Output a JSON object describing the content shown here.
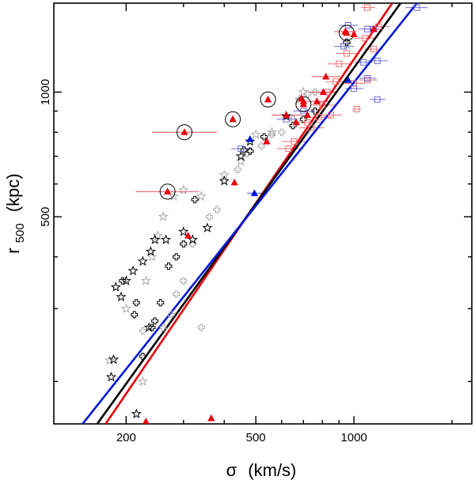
{
  "chart_data": {
    "type": "scatter",
    "title": "",
    "xscale": "log",
    "yscale": "log",
    "xlim": [
      120,
      2300
    ],
    "ylim": [
      158,
      1640
    ],
    "xlabel": {
      "main": "σ",
      "units": "(km/s)"
    },
    "ylabel": {
      "main": "r",
      "sub": "500",
      "units": "(kpc)"
    },
    "xticks": [
      {
        "value": 200,
        "label": "200"
      },
      {
        "value": 500,
        "label": "500"
      },
      {
        "value": 1000,
        "label": "1000"
      }
    ],
    "yticks": [
      {
        "value": 500,
        "label": "500"
      },
      {
        "value": 1000,
        "label": "1000"
      }
    ],
    "colors": {
      "red": "#e8000b",
      "black": "#000000",
      "blue": "#0018d8",
      "grey": "#aaaaaa",
      "light_red": "#f07070",
      "light_blue": "#6c6cd8"
    },
    "fit_lines": [
      {
        "name": "red fit",
        "color": "#e8000b",
        "x": [
          173,
          1310
        ],
        "y": [
          158,
          1640
        ]
      },
      {
        "name": "black fit",
        "color": "#000000",
        "x": [
          163,
          1390
        ],
        "y": [
          158,
          1640
        ]
      },
      {
        "name": "blue fit",
        "color": "#0018d8",
        "x": [
          147,
          1560
        ],
        "y": [
          158,
          1640
        ]
      }
    ],
    "series": [
      {
        "name": "red triangles",
        "marker": "triangle",
        "color": "#e8000b",
        "points": [
          {
            "x": 268,
            "y": 575,
            "xerr": [
              214,
              335
            ],
            "circled": true
          },
          {
            "x": 302,
            "y": 800,
            "xerr": [
              240,
              380
            ],
            "circled": true
          },
          {
            "x": 425,
            "y": 860,
            "circled": true
          },
          {
            "x": 545,
            "y": 960,
            "circled": true
          },
          {
            "x": 700,
            "y": 935,
            "circled": true
          },
          {
            "x": 950,
            "y": 1390,
            "circled": true
          },
          {
            "x": 310,
            "y": 450
          },
          {
            "x": 230,
            "y": 160
          },
          {
            "x": 365,
            "y": 163
          },
          {
            "x": 430,
            "y": 605
          },
          {
            "x": 540,
            "y": 760
          },
          {
            "x": 620,
            "y": 880,
            "xerr": [
              560,
              690
            ]
          },
          {
            "x": 665,
            "y": 845
          },
          {
            "x": 690,
            "y": 965
          },
          {
            "x": 700,
            "y": 950
          },
          {
            "x": 720,
            "y": 880
          },
          {
            "x": 770,
            "y": 950,
            "xerr": [
              700,
              850
            ]
          },
          {
            "x": 805,
            "y": 1000,
            "xerr": [
              730,
              890
            ]
          },
          {
            "x": 820,
            "y": 1090,
            "xerr": [
              740,
              910
            ]
          },
          {
            "x": 940,
            "y": 1400,
            "xerr": [
              870,
              1020
            ]
          },
          {
            "x": 1000,
            "y": 1380
          },
          {
            "x": 1150,
            "y": 1420
          }
        ]
      },
      {
        "name": "blue triangles",
        "marker": "triangle",
        "color": "#0018d8",
        "points": [
          {
            "x": 480,
            "y": 770
          },
          {
            "x": 495,
            "y": 570,
            "xerr": [
              470,
              525
            ]
          },
          {
            "x": 960,
            "y": 1070
          }
        ]
      },
      {
        "name": "black stars",
        "marker": "star",
        "color": "#000000",
        "points": [
          {
            "x": 180,
            "y": 205
          },
          {
            "x": 183,
            "y": 226
          },
          {
            "x": 186,
            "y": 338
          },
          {
            "x": 193,
            "y": 320
          },
          {
            "x": 200,
            "y": 350
          },
          {
            "x": 210,
            "y": 370
          },
          {
            "x": 215,
            "y": 167
          },
          {
            "x": 225,
            "y": 390
          },
          {
            "x": 235,
            "y": 270
          },
          {
            "x": 238,
            "y": 412
          },
          {
            "x": 245,
            "y": 440
          },
          {
            "x": 265,
            "y": 440
          },
          {
            "x": 300,
            "y": 460
          },
          {
            "x": 320,
            "y": 440
          },
          {
            "x": 355,
            "y": 470
          },
          {
            "x": 400,
            "y": 610
          },
          {
            "x": 450,
            "y": 700
          },
          {
            "x": 480,
            "y": 760
          },
          {
            "x": 620,
            "y": 875
          }
        ]
      },
      {
        "name": "black crosses",
        "marker": "cross",
        "color": "#000000",
        "points": [
          {
            "x": 195,
            "y": 350
          },
          {
            "x": 212,
            "y": 290
          },
          {
            "x": 215,
            "y": 310
          },
          {
            "x": 225,
            "y": 230
          },
          {
            "x": 240,
            "y": 270
          },
          {
            "x": 245,
            "y": 280
          },
          {
            "x": 255,
            "y": 310
          },
          {
            "x": 270,
            "y": 380
          },
          {
            "x": 285,
            "y": 400
          },
          {
            "x": 300,
            "y": 430
          },
          {
            "x": 325,
            "y": 550
          },
          {
            "x": 460,
            "y": 725
          },
          {
            "x": 480,
            "y": 720
          },
          {
            "x": 530,
            "y": 780
          },
          {
            "x": 650,
            "y": 830
          },
          {
            "x": 700,
            "y": 860
          },
          {
            "x": 760,
            "y": 900
          },
          {
            "x": 950,
            "y": 1320
          }
        ]
      },
      {
        "name": "grey stars",
        "marker": "star",
        "color": "#aaaaaa",
        "points": [
          {
            "x": 178,
            "y": 225
          },
          {
            "x": 200,
            "y": 300
          },
          {
            "x": 225,
            "y": 200
          },
          {
            "x": 230,
            "y": 350
          },
          {
            "x": 240,
            "y": 400
          },
          {
            "x": 250,
            "y": 450
          },
          {
            "x": 260,
            "y": 500
          },
          {
            "x": 280,
            "y": 560
          },
          {
            "x": 300,
            "y": 580
          },
          {
            "x": 340,
            "y": 560
          },
          {
            "x": 400,
            "y": 630
          },
          {
            "x": 450,
            "y": 680
          },
          {
            "x": 500,
            "y": 790
          },
          {
            "x": 560,
            "y": 800
          },
          {
            "x": 680,
            "y": 960
          },
          {
            "x": 700,
            "y": 1000
          },
          {
            "x": 950,
            "y": 1300
          }
        ]
      },
      {
        "name": "grey crosses",
        "marker": "cross",
        "color": "#aaaaaa",
        "points": [
          {
            "x": 225,
            "y": 265
          },
          {
            "x": 260,
            "y": 270
          },
          {
            "x": 275,
            "y": 290
          },
          {
            "x": 285,
            "y": 325
          },
          {
            "x": 300,
            "y": 350
          },
          {
            "x": 320,
            "y": 430
          },
          {
            "x": 340,
            "y": 270
          },
          {
            "x": 360,
            "y": 500
          },
          {
            "x": 380,
            "y": 520
          },
          {
            "x": 440,
            "y": 650
          },
          {
            "x": 470,
            "y": 710
          },
          {
            "x": 520,
            "y": 740
          },
          {
            "x": 560,
            "y": 790
          },
          {
            "x": 600,
            "y": 800
          },
          {
            "x": 650,
            "y": 860
          },
          {
            "x": 720,
            "y": 990
          },
          {
            "x": 760,
            "y": 1000
          }
        ]
      },
      {
        "name": "red squares",
        "marker": "square",
        "color": "#f07070",
        "points": [
          {
            "x": 630,
            "y": 730,
            "xerr": [
              580,
              700
            ]
          },
          {
            "x": 655,
            "y": 760,
            "xerr": [
              600,
              720
            ]
          },
          {
            "x": 720,
            "y": 845,
            "xerr": [
              660,
              790
            ]
          },
          {
            "x": 740,
            "y": 820,
            "xerr": [
              680,
              810
            ]
          },
          {
            "x": 780,
            "y": 870,
            "xerr": [
              720,
              850
            ]
          },
          {
            "x": 800,
            "y": 930,
            "xerr": [
              740,
              880
            ]
          },
          {
            "x": 830,
            "y": 1000,
            "xerr": [
              780,
              880
            ]
          },
          {
            "x": 850,
            "y": 880,
            "xerr": [
              790,
              920
            ]
          },
          {
            "x": 880,
            "y": 1060,
            "xerr": [
              820,
              950
            ]
          },
          {
            "x": 900,
            "y": 1170,
            "xerr": [
              830,
              980
            ]
          },
          {
            "x": 950,
            "y": 1240,
            "xerr": [
              880,
              1020
            ]
          },
          {
            "x": 1000,
            "y": 1050,
            "xerr": [
              930,
              1080
            ]
          },
          {
            "x": 1020,
            "y": 910,
            "xerr": [
              990,
              1050
            ]
          },
          {
            "x": 1080,
            "y": 1350,
            "xerr": [
              1000,
              1160
            ]
          },
          {
            "x": 1100,
            "y": 1600,
            "xerr": [
              1050,
              1160
            ]
          },
          {
            "x": 1100,
            "y": 1070,
            "xerr": [
              1040,
              1180
            ]
          },
          {
            "x": 1150,
            "y": 1270,
            "xerr": [
              1080,
              1230
            ]
          },
          {
            "x": 1190,
            "y": 1440,
            "xerr": [
              1100,
              1290
            ]
          }
        ]
      },
      {
        "name": "blue squares",
        "marker": "square",
        "color": "#6c6cd8",
        "points": [
          {
            "x": 450,
            "y": 730,
            "xerr": [
              420,
              490
            ]
          },
          {
            "x": 620,
            "y": 860,
            "xerr": [
              580,
              670
            ]
          },
          {
            "x": 700,
            "y": 900,
            "xerr": [
              650,
              760
            ]
          },
          {
            "x": 930,
            "y": 1290,
            "xerr": [
              870,
              1000
            ]
          },
          {
            "x": 960,
            "y": 1450,
            "xerr": [
              900,
              1030
            ]
          },
          {
            "x": 1000,
            "y": 1020,
            "xerr": [
              940,
              1070
            ]
          },
          {
            "x": 1070,
            "y": 1180,
            "xerr": [
              1010,
              1140
            ]
          },
          {
            "x": 1100,
            "y": 1080,
            "xerr": [
              1040,
              1170
            ]
          },
          {
            "x": 1100,
            "y": 1420,
            "xerr": [
              1030,
              1180
            ]
          },
          {
            "x": 1150,
            "y": 1420,
            "xerr": [
              1080,
              1230
            ]
          },
          {
            "x": 1180,
            "y": 1190,
            "xerr": [
              1100,
              1270
            ]
          },
          {
            "x": 1180,
            "y": 960,
            "xerr": [
              1120,
              1250
            ]
          },
          {
            "x": 1560,
            "y": 1600,
            "xerr": [
              1440,
              1680
            ]
          }
        ]
      }
    ]
  }
}
